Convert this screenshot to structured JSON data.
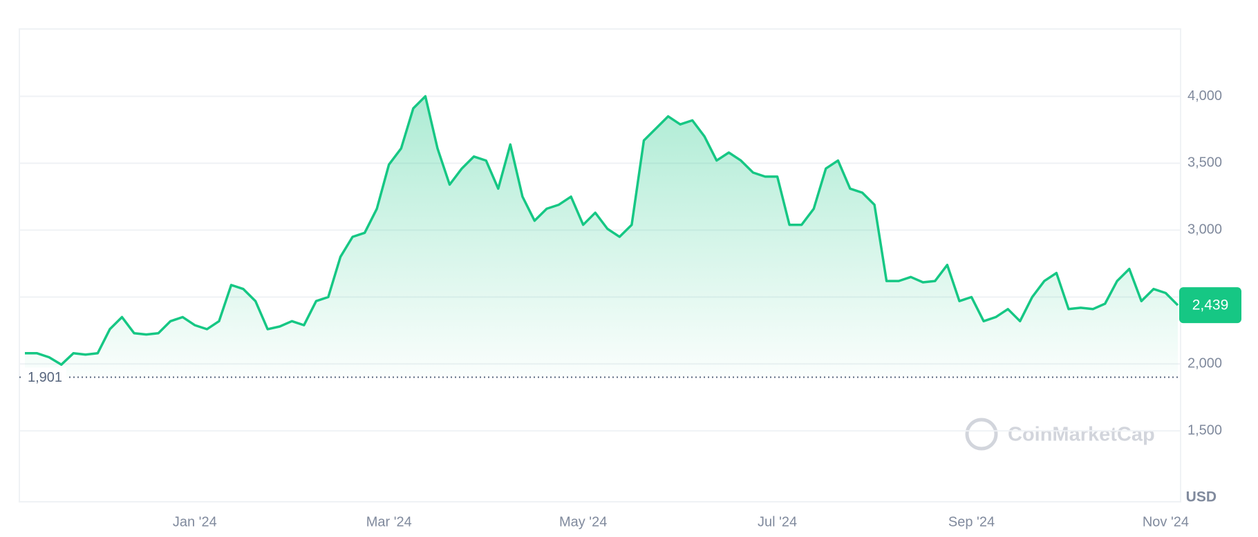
{
  "chart_data": {
    "type": "line",
    "color": "#16c784",
    "categories": [
      null,
      null,
      null,
      null,
      null,
      null,
      null,
      null,
      null,
      null,
      null,
      null,
      null,
      null,
      "Jan '24",
      null,
      null,
      null,
      null,
      null,
      null,
      null,
      null,
      null,
      null,
      null,
      null,
      null,
      null,
      null,
      "Mar '24",
      null,
      null,
      null,
      null,
      null,
      null,
      null,
      null,
      null,
      null,
      null,
      null,
      null,
      null,
      null,
      "May '24",
      null,
      null,
      null,
      null,
      null,
      null,
      null,
      null,
      null,
      null,
      null,
      null,
      null,
      null,
      null,
      "Jul '24",
      null,
      null,
      null,
      null,
      null,
      null,
      null,
      null,
      null,
      null,
      null,
      null,
      null,
      null,
      null,
      "Sep '24",
      null,
      null,
      null,
      null,
      null,
      null,
      null,
      null,
      null,
      null,
      null,
      null,
      null,
      null,
      null,
      "Nov '24",
      null
    ],
    "values": [
      2080,
      2080,
      2050,
      1995,
      2080,
      2070,
      2080,
      2260,
      2350,
      2230,
      2220,
      2230,
      2320,
      2350,
      2290,
      2260,
      2320,
      2590,
      2560,
      2470,
      2260,
      2280,
      2320,
      2290,
      2470,
      2500,
      2800,
      2950,
      2980,
      3160,
      3490,
      3610,
      3910,
      4000,
      3610,
      3340,
      3460,
      3550,
      3520,
      3310,
      3640,
      3250,
      3070,
      3160,
      3190,
      3250,
      3040,
      3130,
      3010,
      2950,
      3040,
      3670,
      3760,
      3850,
      3790,
      3820,
      3700,
      3520,
      3580,
      3520,
      3430,
      3400,
      3400,
      3040,
      3040,
      3160,
      3460,
      3520,
      3310,
      3280,
      3190,
      2620,
      2620,
      2650,
      2610,
      2620,
      2740,
      2470,
      2500,
      2320,
      2350,
      2410,
      2320,
      2500,
      2620,
      2680,
      2410,
      2420,
      2410,
      2450,
      2620,
      2710,
      2470,
      2560,
      2530,
      2439
    ],
    "ylim": [
      970,
      4503
    ],
    "yticks": [
      {
        "value": 1500,
        "label": "1,500"
      },
      {
        "value": 2000,
        "label": "2,000"
      },
      {
        "value": 2500,
        "label": ""
      },
      {
        "value": 3000,
        "label": "3,000"
      },
      {
        "value": 3500,
        "label": "3,500"
      },
      {
        "value": 4000,
        "label": "4,000"
      }
    ],
    "grid": true,
    "reference": {
      "value": 1901,
      "label": "1,901"
    },
    "price_tag": {
      "value": 2439,
      "label": "2,439"
    },
    "unit": "USD",
    "watermark": "CoinMarketCap"
  }
}
